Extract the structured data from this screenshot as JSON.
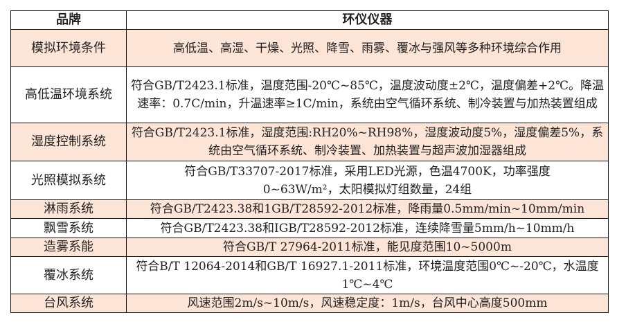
{
  "header": {
    "brand": "品牌",
    "instrument": "环仪仪器"
  },
  "rows": [
    {
      "name": "模拟环境条件",
      "desc": "高低温、高湿、干燥、光照、降雪、雨雾、覆冰与强风等多种环境综合作用"
    },
    {
      "name": "高低温环境系统",
      "desc": "符合GB/T2423.1标准，温度范围-20℃~85℃，温度波动度±2℃，温度偏差+2℃。降温速率：0.7C/min，升温速率≥1C/min，系统由空气循环系统、制冷装置与加热装置组成"
    },
    {
      "name": "湿度控制系统",
      "desc": "符合GB/T2423.1标准，湿度范围:RH20%~RH98%，湿度波动度5%，湿度偏差5%，系统由空气循环系统、制冷装置、加热装置与超声波加湿器组成"
    },
    {
      "name": "光照模拟系统",
      "desc": "符合GB/T33707-2017标准，采用LED光源，色温4700K，功率强度0~63W/m²，太阳模拟灯组数量，24组"
    },
    {
      "name": "淋雨系统",
      "desc": "符合GB/T2423.38和1GB/T28592-2012标准，降雨量0.5mm/min~10mm/min"
    },
    {
      "name": "飘雪系统",
      "desc": "符合GB/T2423.38和IGB/T28592-2012标准，连续降雪量5mm/h~10mm/h"
    },
    {
      "name": "造雾系能",
      "desc": "符合GB/T 27964-2011标准，能见度范围10~5000m"
    },
    {
      "name": "覆冰系统",
      "desc": "符合B/T 12064-2014和GB/T 16927.1-2011标准，环境温度范围0℃~-20℃，水温度1℃~4℃"
    },
    {
      "name": "台风系统",
      "desc": "风速范围2m/s~10m/s，风速稳定度：1m/s，台风中心高度500mm"
    }
  ],
  "colors": {
    "stripe": "#fce4d6",
    "border": "#111111"
  }
}
